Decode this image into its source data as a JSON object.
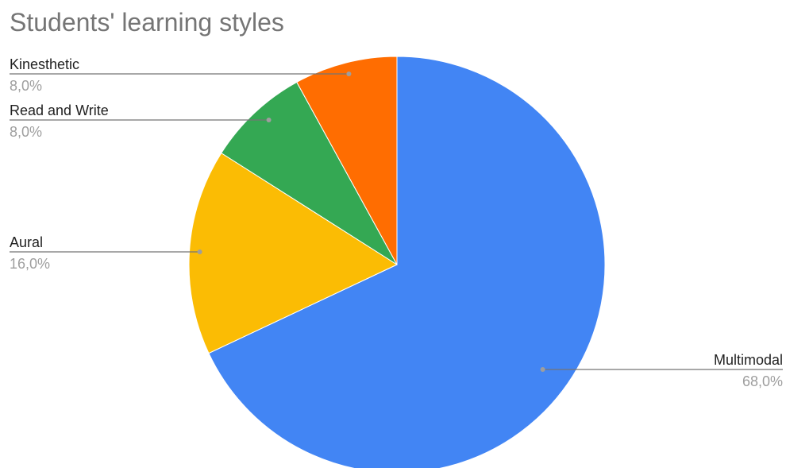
{
  "chart_data": {
    "type": "pie",
    "title": "Students' learning styles",
    "slices": [
      {
        "label": "Multimodal",
        "value": 68,
        "display": "68,0%",
        "color": "#4285F4"
      },
      {
        "label": "Aural",
        "value": 16,
        "display": "16,0%",
        "color": "#FBBC04"
      },
      {
        "label": "Read and Write",
        "value": 8,
        "display": "8,0%",
        "color": "#34A853"
      },
      {
        "label": "Kinesthetic",
        "value": 8,
        "display": "8,0%",
        "color": "#FF6D01"
      }
    ],
    "start_angle": "12 o'clock",
    "direction": "clockwise",
    "label_style": "callout lines with label and percentage"
  }
}
